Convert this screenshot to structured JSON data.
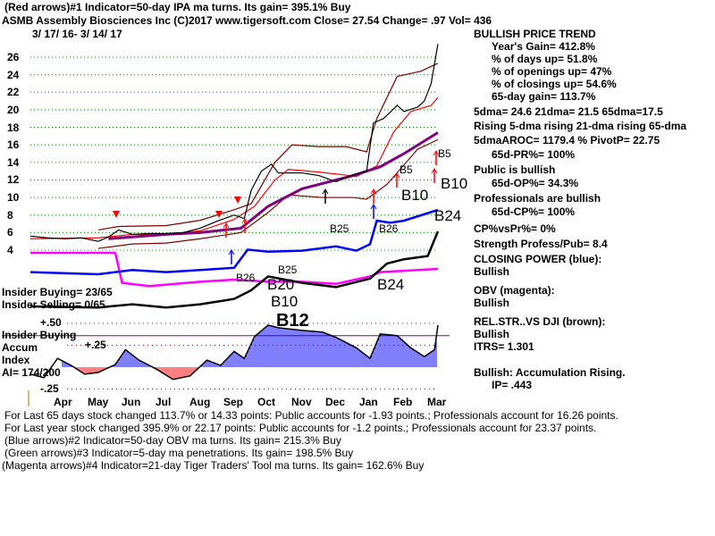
{
  "header": {
    "indicator1": "(Red arrows)#1 Indicator=50-day IPA ma turns. Its gain= 395.1% Buy",
    "title": "ASMB   Assembly Biosciences Inc  (C)2017 www.tigersoft.com     Close=  27.54  Change= .97 Vol= 436",
    "date_range": "3/ 17/ 16- 3/ 14/ 17"
  },
  "side_panel": {
    "heading": "BULLISH PRICE TREND",
    "lines": [
      "Year's Gain= 412.8%",
      "% of days up= 51.8%",
      "% of openings up= 47%",
      "% of closings up= 54.6%",
      "65-day gain= 113.7%"
    ],
    "dma": "5dma= 24.6 21dma= 21.5 65dma=17.5",
    "rising": "Rising 5-dma  rising 21-dma  rising 65-dma",
    "aroc": "5dmaAROC= 1179.4 %  PivotP= 22.75",
    "pr": "65d-PR%= 100%",
    "public": "Public is bullish",
    "op": "65d-OP%= 34.3%",
    "professionals": "Professionals are bullish",
    "cp": "65d-CP%= 100%",
    "cpvspr": "CP%vsPr%=  0%",
    "strength": "Strength Profess/Pub= 8.4",
    "closing_power": "CLOSING POWER (blue):",
    "closing_power_status": "Bullish",
    "obv": "OBV (magenta):",
    "obv_status": "Bullish",
    "relstr": "REL.STR..VS DJI (brown):",
    "relstr_status": "Bullish",
    "itrs": "ITRS= 1.301",
    "accum": "Bullish: Accumulation Rising.",
    "ip": "IP=  .443"
  },
  "left_labels": {
    "insider_buying": "Insider Buying= 23/65",
    "insider_selling": "Insider Selling= 0/65",
    "insider_buying2": "Insider Buying",
    "accum": "Accum",
    "index": "Index",
    "ai": "AI= 174/200"
  },
  "footer": [
    "For Last 65 days stock changed  113.7% or  14.33 points:  Public accounts for -1.93 points.;  Professionals account for  16.26 points.",
    "For Last year stock changed  395.9% or  22.17 points:  Public accounts for -1.2 points.;  Professionals account for  23.37 points.",
    "(Blue arrows)#2 Indicator=50-day OBV ma turns. Its gain= 215.3% Buy",
    "(Green arrows)#3 Indicator=5-day ma penetrations. Its gain= 198.5% Buy",
    "(Magenta arrows)#4 Indicator=21-day Tiger Traders' Tool ma turns. Its gain= 162.6% Buy"
  ],
  "chart_data": {
    "type": "line",
    "title": "ASMB Assembly Biosciences Inc",
    "x_unit": "months since 3/17/16",
    "months": [
      "Apr",
      "May",
      "Jun",
      "Jul",
      "Aug",
      "Sep",
      "Oct",
      "Nov",
      "Dec",
      "Jan",
      "Feb",
      "Mar"
    ],
    "price_ticks": [
      "4",
      "6",
      "8",
      "10",
      "12",
      "14",
      "16",
      "18",
      "20",
      "22",
      "24",
      "26"
    ],
    "ylim": [
      4,
      26
    ],
    "accum_ticks": [
      "+.50",
      "+.25",
      "-.25"
    ],
    "accum_threshold": 0.36,
    "signals": [
      "B5",
      "B5",
      "B10",
      "B10",
      "B24",
      "B25",
      "B26",
      "B26",
      "B25",
      "B20",
      "B10",
      "B12",
      "B24"
    ],
    "colors": {
      "price": "#000000",
      "ma65": "#800080",
      "ma21": "#ff0000",
      "band": "#800000",
      "cp": "#0000ff",
      "obv": "#ff00ff",
      "rs": "#000000",
      "grid": "#008000",
      "accum_pos": "#0000ff",
      "accum_neg": "#ff0000"
    },
    "price": [
      [
        0,
        5.6
      ],
      [
        0.5,
        5.4
      ],
      [
        1,
        5.3
      ],
      [
        1.5,
        5.4
      ],
      [
        2,
        5.0
      ],
      [
        2.3,
        5.5
      ],
      [
        2.6,
        6.3
      ],
      [
        3,
        5.8
      ],
      [
        3.5,
        5.9
      ],
      [
        4,
        5.9
      ],
      [
        4.5,
        6.0
      ],
      [
        5,
        6.5
      ],
      [
        5.5,
        7.3
      ],
      [
        6,
        8.0
      ],
      [
        6.3,
        7.6
      ],
      [
        6.5,
        10.8
      ],
      [
        6.8,
        13.0
      ],
      [
        7.1,
        13.8
      ],
      [
        7.3,
        12.8
      ],
      [
        8,
        12.8
      ],
      [
        8.5,
        12.5
      ],
      [
        9,
        11.8
      ],
      [
        9.5,
        12.6
      ],
      [
        9.9,
        13.0
      ],
      [
        10.1,
        18.5
      ],
      [
        10.4,
        19.0
      ],
      [
        10.8,
        20.5
      ],
      [
        11,
        19.8
      ],
      [
        11.4,
        20.3
      ],
      [
        11.6,
        21.0
      ],
      [
        11.8,
        23.0
      ],
      [
        12,
        27.5
      ]
    ],
    "ma65": [
      [
        2.3,
        5.3
      ],
      [
        4,
        5.8
      ],
      [
        5,
        6.0
      ],
      [
        6.2,
        6.5
      ],
      [
        7,
        9.0
      ],
      [
        8,
        11.0
      ],
      [
        9.5,
        12.5
      ],
      [
        10.3,
        13.5
      ],
      [
        11,
        15.0
      ],
      [
        12,
        17.4
      ]
    ],
    "ma21": [
      [
        0,
        5.3
      ],
      [
        2,
        5.4
      ],
      [
        3,
        5.8
      ],
      [
        4,
        5.8
      ],
      [
        5,
        6.2
      ],
      [
        6,
        7.5
      ],
      [
        6.6,
        9
      ],
      [
        7.2,
        12
      ],
      [
        7.6,
        13.2
      ],
      [
        8.5,
        12.9
      ],
      [
        9.6,
        12.4
      ],
      [
        10.2,
        13.6
      ],
      [
        10.7,
        17.5
      ],
      [
        11.2,
        19.8
      ],
      [
        11.8,
        20.5
      ],
      [
        12,
        21.4
      ]
    ],
    "band_upper": [
      [
        2,
        6.3
      ],
      [
        2.6,
        6.7
      ],
      [
        4,
        6.8
      ],
      [
        5,
        7.4
      ],
      [
        6,
        8.6
      ],
      [
        6.5,
        9.3
      ],
      [
        7.2,
        14
      ],
      [
        7.7,
        16
      ],
      [
        8.5,
        15.8
      ],
      [
        9.3,
        15.8
      ],
      [
        9.9,
        15.2
      ],
      [
        10.2,
        19
      ],
      [
        10.8,
        23.8
      ],
      [
        11.5,
        24.4
      ],
      [
        12,
        25.3
      ]
    ],
    "band_lower": [
      [
        2,
        4.2
      ],
      [
        3,
        4.7
      ],
      [
        4,
        4.8
      ],
      [
        5,
        5.3
      ],
      [
        6.2,
        6
      ],
      [
        7,
        8.3
      ],
      [
        7.6,
        10.3
      ],
      [
        8.6,
        10.0
      ],
      [
        9.5,
        10.0
      ],
      [
        9.9,
        9.8
      ],
      [
        10.5,
        11.5
      ],
      [
        11.4,
        15.5
      ],
      [
        12,
        16.6
      ]
    ],
    "closing_power": [
      [
        0,
        42
      ],
      [
        2,
        40
      ],
      [
        3,
        44
      ],
      [
        4,
        42
      ],
      [
        5,
        44
      ],
      [
        6,
        46
      ],
      [
        6.4,
        63
      ],
      [
        7,
        61
      ],
      [
        8,
        62
      ],
      [
        9,
        66
      ],
      [
        9.6,
        62
      ],
      [
        10,
        68
      ],
      [
        10.2,
        90
      ],
      [
        10.6,
        88
      ],
      [
        11,
        90
      ],
      [
        11.5,
        95
      ],
      [
        12,
        100
      ]
    ],
    "obv": [
      [
        0,
        60
      ],
      [
        2.5,
        60
      ],
      [
        2.7,
        32
      ],
      [
        3.5,
        29
      ],
      [
        5,
        33
      ],
      [
        6,
        35
      ],
      [
        7,
        33
      ],
      [
        8,
        33
      ],
      [
        9,
        31
      ],
      [
        10,
        38
      ],
      [
        10.3,
        42
      ],
      [
        12,
        45
      ]
    ],
    "rel_strength": [
      [
        0,
        10
      ],
      [
        2,
        9
      ],
      [
        3,
        12
      ],
      [
        4,
        9
      ],
      [
        5,
        12
      ],
      [
        6,
        17
      ],
      [
        6.5,
        25
      ],
      [
        7,
        38
      ],
      [
        8,
        32
      ],
      [
        9,
        28
      ],
      [
        10,
        36
      ],
      [
        10.5,
        50
      ],
      [
        11,
        54
      ],
      [
        11.7,
        57
      ],
      [
        12,
        80
      ]
    ],
    "accum_index": [
      [
        0,
        -0.08
      ],
      [
        0.4,
        -0.12
      ],
      [
        0.8,
        0.1
      ],
      [
        1.2,
        0.02
      ],
      [
        1.6,
        -0.08
      ],
      [
        2,
        -0.06
      ],
      [
        2.5,
        0.03
      ],
      [
        2.8,
        0.2
      ],
      [
        3.2,
        0.08
      ],
      [
        3.7,
        -0.02
      ],
      [
        4.2,
        -0.14
      ],
      [
        4.7,
        -0.1
      ],
      [
        5.2,
        0.08
      ],
      [
        5.6,
        0.02
      ],
      [
        6,
        0.18
      ],
      [
        6.3,
        0.1
      ],
      [
        6.6,
        0.35
      ],
      [
        7,
        0.48
      ],
      [
        7.3,
        0.45
      ],
      [
        8,
        0.42
      ],
      [
        8.6,
        0.4
      ],
      [
        9,
        0.34
      ],
      [
        9.6,
        0.22
      ],
      [
        10,
        0.1
      ],
      [
        10.3,
        0.38
      ],
      [
        10.8,
        0.36
      ],
      [
        11.2,
        0.22
      ],
      [
        11.6,
        0.12
      ],
      [
        11.9,
        0.2
      ],
      [
        12,
        0.48
      ]
    ]
  }
}
